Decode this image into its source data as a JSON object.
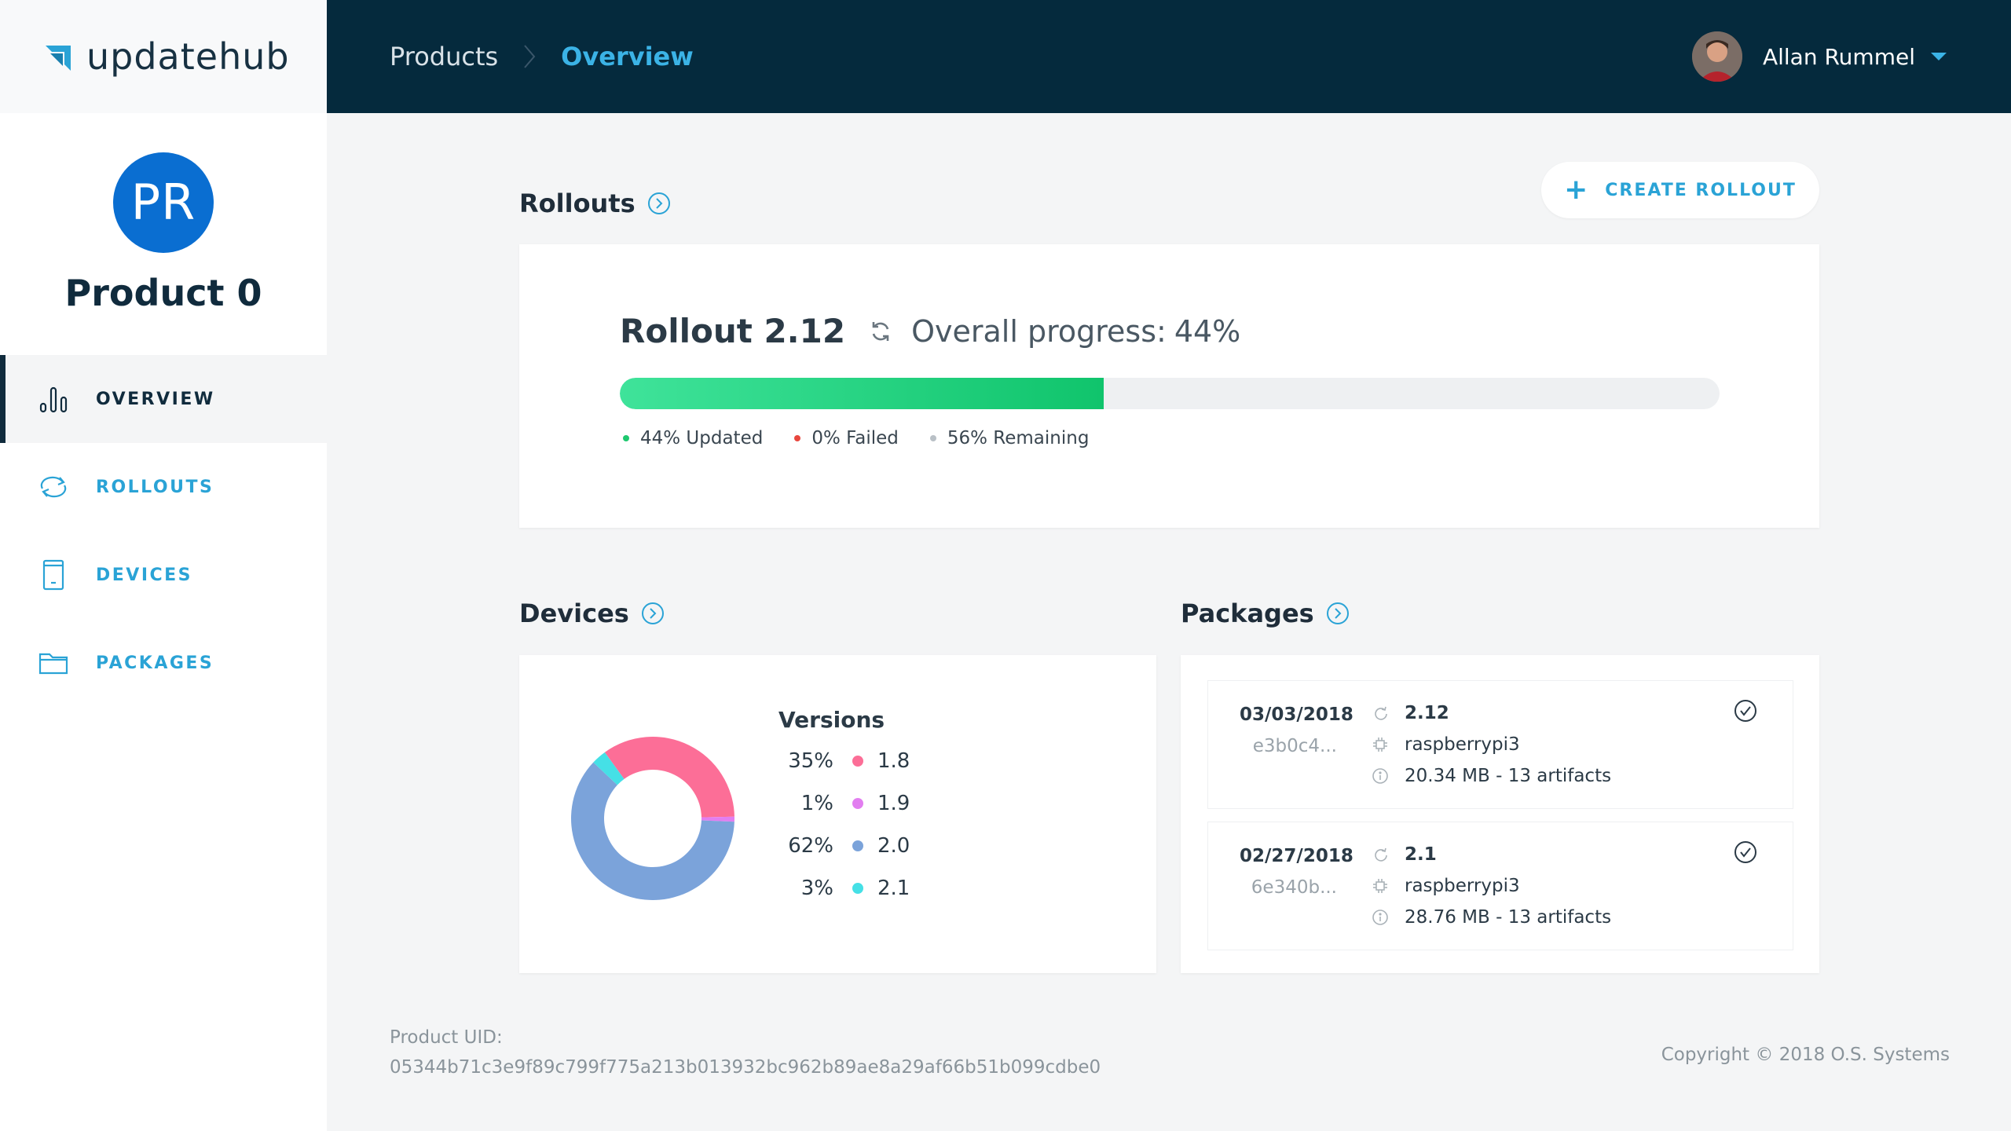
{
  "brand": {
    "name_part1": "update",
    "name_part2": "hub"
  },
  "product": {
    "initials": "PR",
    "name": "Product 0"
  },
  "nav": {
    "items": [
      {
        "label": "OVERVIEW",
        "icon": "bar-chart-icon",
        "active": true
      },
      {
        "label": "ROLLOUTS",
        "icon": "rollout-cycle-icon",
        "active": false
      },
      {
        "label": "DEVICES",
        "icon": "device-icon",
        "active": false
      },
      {
        "label": "PACKAGES",
        "icon": "folder-icon",
        "active": false
      }
    ]
  },
  "header": {
    "breadcrumb_root": "Products",
    "breadcrumb_current": "Overview",
    "user_name": "Allan Rummel"
  },
  "rollouts": {
    "section_title": "Rollouts",
    "create_label": "CREATE ROLLOUT",
    "rollout_title": "Rollout 2.12",
    "overall_label": "Overall progress:",
    "overall_value": "44%",
    "progress_fraction": 0.44,
    "legend": [
      {
        "text": "44% Updated",
        "color": "#1ec86f"
      },
      {
        "text": "0% Failed",
        "color": "#e8473e"
      },
      {
        "text": "56% Remaining",
        "color": "#b9c0c6"
      }
    ]
  },
  "devices": {
    "section_title": "Devices",
    "versions_title": "Versions",
    "versions": [
      {
        "pct": "35%",
        "version": "1.8",
        "value": 35,
        "color": "#fc6e97"
      },
      {
        "pct": "1%",
        "version": "1.9",
        "value": 1,
        "color": "#e27ef0"
      },
      {
        "pct": "62%",
        "version": "2.0",
        "value": 62,
        "color": "#7ba3da"
      },
      {
        "pct": "3%",
        "version": "2.1",
        "value": 3,
        "color": "#45e0e6"
      }
    ]
  },
  "packages": {
    "section_title": "Packages",
    "items": [
      {
        "date": "03/03/2018",
        "hash": "e3b0c4...",
        "version": "2.12",
        "hardware": "raspberrypi3",
        "size": "20.34 MB - 13 artifacts"
      },
      {
        "date": "02/27/2018",
        "hash": "6e340b...",
        "version": "2.1",
        "hardware": "raspberrypi3",
        "size": "28.76 MB - 13 artifacts"
      }
    ]
  },
  "footer": {
    "uid_label": "Product UID:",
    "uid": "05344b71c3e9f89c799f775a213b013932bc962b89ae8a29af66b51b099cdbe0",
    "copyright": "Copyright © 2018 O.S. Systems"
  },
  "colors": {
    "accent": "#2aa3d6",
    "topbar": "#052a3d",
    "progress": "#1ec86f"
  }
}
